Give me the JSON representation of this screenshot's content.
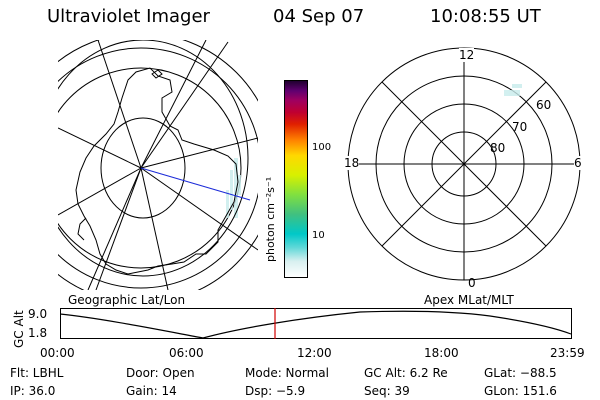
{
  "header": {
    "instrument": "Ultraviolet Imager",
    "date": "04 Sep 07",
    "time": "10:08:55 UT"
  },
  "colorbar": {
    "unit_label": "photon cm⁻²s⁻¹",
    "ticks": [
      "100",
      "10"
    ],
    "colors": [
      "#ffffff",
      "#d8f0f0",
      "#60d8d8",
      "#00c8c8",
      "#40c080",
      "#80e040",
      "#d8f000",
      "#ffd800",
      "#ff8000",
      "#e02000",
      "#c00030",
      "#a00060",
      "#600070",
      "#200030"
    ]
  },
  "left_panel": {
    "label": "Geographic Lat/Lon"
  },
  "right_panel": {
    "label": "Apex MLat/MLT",
    "mlt_labels": {
      "top": "12",
      "left": "18",
      "right": "6",
      "bottom": "0"
    },
    "lat_labels": [
      "60",
      "70",
      "80"
    ]
  },
  "timeline": {
    "ylabel": "GC Alt",
    "yticks": [
      "9.0",
      "1.8"
    ],
    "xticks": [
      "00:00",
      "06:00",
      "12:00",
      "18:00",
      "23:59"
    ],
    "current_time_fraction": 0.42,
    "marker_color": "#d00000"
  },
  "footer": {
    "row1": {
      "flt": "Flt: LBHL",
      "door": "Door: Open",
      "mode": "Mode: Normal",
      "gc_alt": "GC Alt: 6.2 Re",
      "glat": "GLat: −88.5"
    },
    "row2": {
      "ip": "IP: 36.0",
      "gain": "Gain: 14",
      "dsp": "Dsp:    −5.9",
      "seq": "Seq: 39",
      "glon": "GLon: 151.6"
    }
  }
}
